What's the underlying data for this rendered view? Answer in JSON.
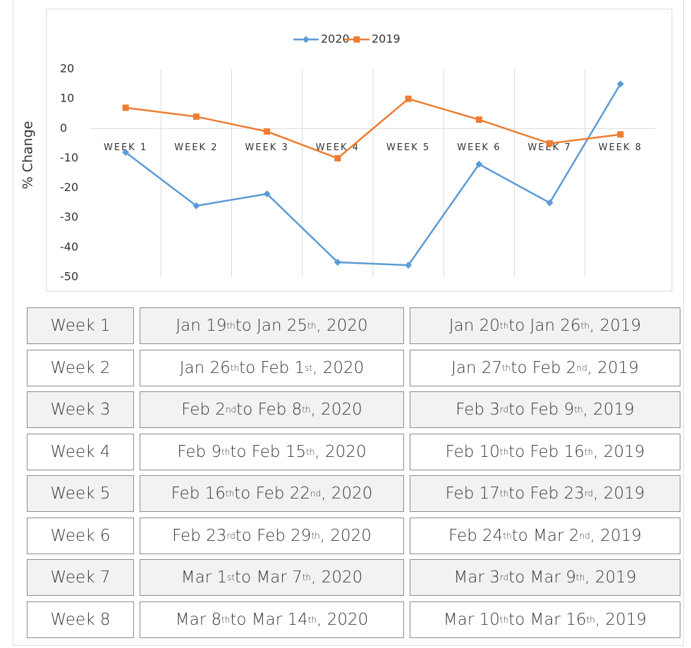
{
  "chart_data": {
    "type": "line",
    "y_label": "% Change",
    "categories": [
      "WEEK 1",
      "WEEK 2",
      "WEEK 3",
      "WEEK 4",
      "WEEK 5",
      "WEEK 6",
      "WEEK 7",
      "WEEK 8"
    ],
    "series": [
      {
        "name": "2020",
        "color": "#5b9bd5",
        "marker": "diamond",
        "values": [
          -8,
          -26,
          -22,
          -45,
          -46,
          -12,
          -25,
          15
        ]
      },
      {
        "name": "2019",
        "color": "#ed7d31",
        "marker": "square",
        "values": [
          7,
          4,
          -1,
          -10,
          10,
          3,
          -5,
          -2
        ]
      }
    ],
    "ylim": [
      -50,
      20
    ],
    "yticks": [
      -50,
      -40,
      -30,
      -20,
      -10,
      0,
      10,
      20
    ],
    "legend": "top"
  },
  "table": {
    "rows": [
      [
        "Week 1",
        "Jan 19th to Jan 25th, 2020",
        "Jan 20th to Jan 26th, 2019"
      ],
      [
        "Week 2",
        "Jan 26th to Feb 1st, 2020",
        "Jan 27th to Feb 2nd, 2019"
      ],
      [
        "Week 3",
        "Feb 2nd to Feb 8th, 2020",
        "Feb 3rd to Feb 9th, 2019"
      ],
      [
        "Week 4",
        "Feb 9th to Feb 15th, 2020",
        "Feb 10th to Feb 16th, 2019"
      ],
      [
        "Week 5",
        "Feb 16th to Feb 22nd, 2020",
        "Feb 17th to Feb 23rd, 2019"
      ],
      [
        "Week 6",
        "Feb 23rd to Feb 29th, 2020",
        "Feb 24th to Mar 2nd, 2019"
      ],
      [
        "Week 7",
        "Mar 1st to Mar 7th, 2020",
        "Mar 3rd to Mar 9th, 2019"
      ],
      [
        "Week 8",
        "Mar 8th to Mar 14th, 2020",
        "Mar 10th to Mar 16th, 2019"
      ]
    ]
  }
}
